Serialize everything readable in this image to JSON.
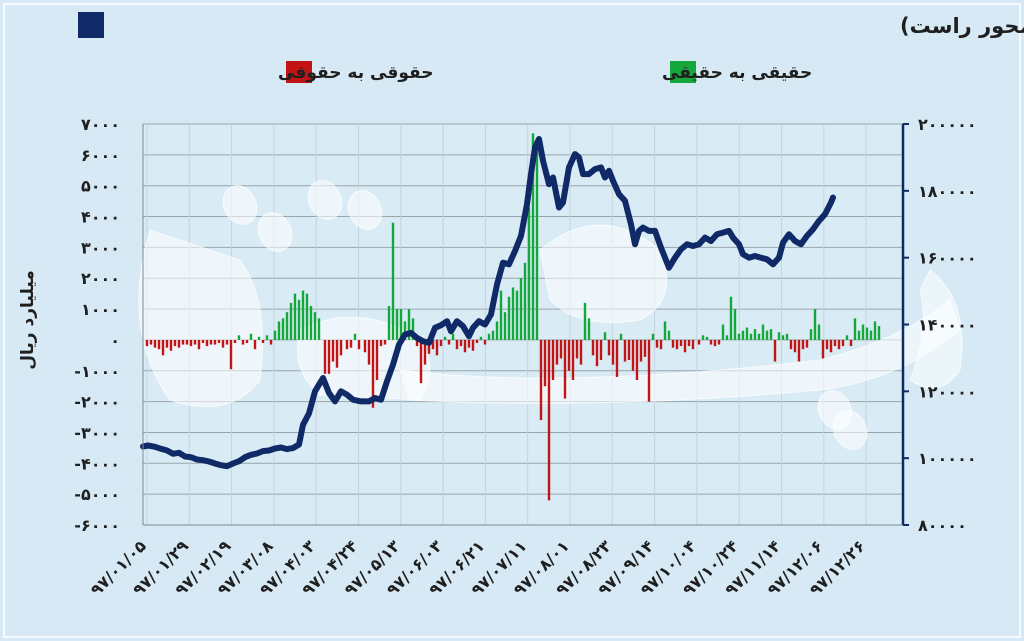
{
  "chart_data": {
    "type": "bar+line",
    "title": "تغییر مالکیت میان سهامداران (محور چپ) و شاخص کل (محور راست)",
    "legend": {
      "line_label": "",
      "green_label": "حقیقی به حقیقی",
      "red_label": "حقوقی به حقوقی",
      "line_color": "#0f2a66",
      "green_color": "#14a83c",
      "red_color": "#c21414"
    },
    "ylabel_left": "میلیارد ریال",
    "ylim_left": [
      -6000,
      7000
    ],
    "ylim_right": [
      80000,
      200000
    ],
    "left_ticks": [
      "۷۰۰۰",
      "۶۰۰۰",
      "۵۰۰۰",
      "۴۰۰۰",
      "۳۰۰۰",
      "۲۰۰۰",
      "۱۰۰۰",
      "۰",
      "-۱۰۰۰",
      "-۲۰۰۰",
      "-۳۰۰۰",
      "-۴۰۰۰",
      "-۵۰۰۰",
      "-۶۰۰۰"
    ],
    "right_ticks": [
      "۲۰۰۰۰۰",
      "۱۸۰۰۰۰",
      "۱۶۰۰۰۰",
      "۱۴۰۰۰۰",
      "۱۲۰۰۰۰",
      "۱۰۰۰۰۰",
      "۸۰۰۰۰"
    ],
    "x_categories": [
      "۹۷/۰۱/۰۵",
      "۹۷/۰۱/۲۹",
      "۹۷/۰۲/۱۹",
      "۹۷/۰۳/۰۸",
      "۹۷/۰۴/۰۳",
      "۹۷/۰۴/۲۴",
      "۹۷/۰۵/۱۳",
      "۹۷/۰۶/۰۳",
      "۹۷/۰۶/۲۱",
      "۹۷/۰۷/۱۱",
      "۹۷/۰۸/۰۱",
      "۹۷/۰۸/۲۳",
      "۹۷/۰۹/۱۴",
      "۹۷/۱۰/۰۴",
      "۹۷/۱۰/۲۴",
      "۹۷/۱۱/۱۴",
      "۹۷/۱۲/۰۶",
      "۹۷/۱۲/۲۶"
    ],
    "index_series": [
      [
        0,
        103500
      ],
      [
        5,
        103800
      ],
      [
        12,
        103400
      ],
      [
        18,
        102800
      ],
      [
        24,
        102300
      ],
      [
        30,
        101300
      ],
      [
        36,
        101600
      ],
      [
        42,
        100500
      ],
      [
        48,
        100300
      ],
      [
        54,
        99600
      ],
      [
        60,
        99400
      ],
      [
        66,
        99000
      ],
      [
        72,
        98400
      ],
      [
        78,
        97900
      ],
      [
        84,
        97600
      ],
      [
        90,
        98400
      ],
      [
        96,
        99100
      ],
      [
        102,
        100300
      ],
      [
        108,
        101000
      ],
      [
        114,
        101400
      ],
      [
        120,
        102100
      ],
      [
        126,
        102300
      ],
      [
        132,
        102900
      ],
      [
        138,
        103200
      ],
      [
        144,
        102700
      ],
      [
        150,
        103000
      ],
      [
        156,
        104100
      ],
      [
        160,
        110000
      ],
      [
        166,
        113400
      ],
      [
        172,
        120000
      ],
      [
        180,
        124000
      ],
      [
        186,
        119500
      ],
      [
        192,
        117000
      ],
      [
        198,
        120000
      ],
      [
        204,
        119000
      ],
      [
        210,
        117500
      ],
      [
        218,
        117000
      ],
      [
        226,
        117000
      ],
      [
        232,
        118000
      ],
      [
        238,
        117500
      ],
      [
        244,
        123000
      ],
      [
        250,
        128000
      ],
      [
        256,
        134000
      ],
      [
        262,
        137000
      ],
      [
        268,
        137500
      ],
      [
        274,
        136000
      ],
      [
        280,
        135000
      ],
      [
        286,
        134500
      ],
      [
        292,
        139000
      ],
      [
        298,
        139800
      ],
      [
        304,
        141000
      ],
      [
        308,
        138000
      ],
      [
        314,
        141000
      ],
      [
        320,
        139500
      ],
      [
        326,
        136500
      ],
      [
        330,
        139000
      ],
      [
        336,
        141000
      ],
      [
        342,
        140000
      ],
      [
        348,
        143000
      ],
      [
        354,
        152000
      ],
      [
        360,
        158500
      ],
      [
        366,
        158000
      ],
      [
        372,
        162000
      ],
      [
        378,
        166500
      ],
      [
        384,
        176000
      ],
      [
        388,
        185000
      ],
      [
        392,
        193000
      ],
      [
        396,
        195500
      ],
      [
        400,
        189000
      ],
      [
        406,
        182000
      ],
      [
        410,
        184000
      ],
      [
        416,
        175000
      ],
      [
        420,
        176500
      ],
      [
        426,
        187000
      ],
      [
        432,
        191000
      ],
      [
        436,
        190000
      ],
      [
        440,
        185000
      ],
      [
        446,
        185000
      ],
      [
        452,
        186500
      ],
      [
        458,
        187000
      ],
      [
        462,
        184000
      ],
      [
        466,
        186000
      ],
      [
        470,
        183000
      ],
      [
        476,
        179000
      ],
      [
        482,
        177000
      ],
      [
        488,
        170000
      ],
      [
        492,
        164000
      ],
      [
        496,
        168000
      ],
      [
        500,
        169000
      ],
      [
        506,
        168000
      ],
      [
        512,
        168000
      ],
      [
        518,
        163000
      ],
      [
        522,
        160000
      ],
      [
        526,
        157000
      ],
      [
        532,
        160000
      ],
      [
        538,
        162500
      ],
      [
        544,
        164000
      ],
      [
        550,
        163500
      ],
      [
        556,
        164000
      ],
      [
        562,
        166000
      ],
      [
        568,
        165000
      ],
      [
        574,
        167000
      ],
      [
        580,
        167500
      ],
      [
        586,
        168000
      ],
      [
        590,
        166000
      ],
      [
        596,
        164000
      ],
      [
        600,
        161000
      ],
      [
        606,
        160000
      ],
      [
        612,
        160500
      ],
      [
        618,
        160000
      ],
      [
        624,
        159500
      ],
      [
        630,
        158000
      ],
      [
        636,
        160000
      ],
      [
        640,
        164500
      ],
      [
        646,
        167000
      ],
      [
        652,
        165000
      ],
      [
        658,
        164000
      ],
      [
        664,
        166500
      ],
      [
        670,
        168500
      ],
      [
        676,
        171000
      ],
      [
        682,
        173000
      ],
      [
        688,
        176500
      ],
      [
        690,
        178000
      ]
    ],
    "bars": [
      {
        "x": 4,
        "v": -200
      },
      {
        "x": 8,
        "v": -150
      },
      {
        "x": 12,
        "v": -250
      },
      {
        "x": 16,
        "v": -300
      },
      {
        "x": 20,
        "v": -500
      },
      {
        "x": 24,
        "v": -250
      },
      {
        "x": 28,
        "v": -350
      },
      {
        "x": 32,
        "v": -200
      },
      {
        "x": 36,
        "v": -250
      },
      {
        "x": 40,
        "v": -150
      },
      {
        "x": 44,
        "v": -150
      },
      {
        "x": 48,
        "v": -200
      },
      {
        "x": 52,
        "v": -150
      },
      {
        "x": 56,
        "v": -300
      },
      {
        "x": 60,
        "v": -100
      },
      {
        "x": 64,
        "v": -200
      },
      {
        "x": 68,
        "v": -150
      },
      {
        "x": 72,
        "v": -150
      },
      {
        "x": 76,
        "v": -100
      },
      {
        "x": 80,
        "v": -250
      },
      {
        "x": 84,
        "v": -150
      },
      {
        "x": 88,
        "v": -950
      },
      {
        "x": 92,
        "v": -100
      },
      {
        "x": 96,
        "v": 150
      },
      {
        "x": 100,
        "v": -150
      },
      {
        "x": 104,
        "v": -100
      },
      {
        "x": 108,
        "v": 200
      },
      {
        "x": 112,
        "v": -300
      },
      {
        "x": 116,
        "v": 100
      },
      {
        "x": 120,
        "v": -100
      },
      {
        "x": 124,
        "v": 150
      },
      {
        "x": 128,
        "v": -150
      },
      {
        "x": 132,
        "v": 300
      },
      {
        "x": 136,
        "v": 600
      },
      {
        "x": 140,
        "v": 700
      },
      {
        "x": 144,
        "v": 900
      },
      {
        "x": 148,
        "v": 1200
      },
      {
        "x": 152,
        "v": 1500
      },
      {
        "x": 156,
        "v": 1300
      },
      {
        "x": 160,
        "v": 1600
      },
      {
        "x": 164,
        "v": 1500
      },
      {
        "x": 168,
        "v": 1100
      },
      {
        "x": 172,
        "v": 900
      },
      {
        "x": 176,
        "v": 700
      },
      {
        "x": 182,
        "v": -1100
      },
      {
        "x": 186,
        "v": -1100
      },
      {
        "x": 190,
        "v": -700
      },
      {
        "x": 194,
        "v": -900
      },
      {
        "x": 198,
        "v": -500
      },
      {
        "x": 204,
        "v": -300
      },
      {
        "x": 208,
        "v": -250
      },
      {
        "x": 212,
        "v": 200
      },
      {
        "x": 216,
        "v": -300
      },
      {
        "x": 222,
        "v": -400
      },
      {
        "x": 226,
        "v": -800
      },
      {
        "x": 230,
        "v": -2200
      },
      {
        "x": 234,
        "v": -1300
      },
      {
        "x": 238,
        "v": -200
      },
      {
        "x": 242,
        "v": -150
      },
      {
        "x": 246,
        "v": 1100
      },
      {
        "x": 250,
        "v": 3800
      },
      {
        "x": 254,
        "v": 1000
      },
      {
        "x": 258,
        "v": 1000
      },
      {
        "x": 262,
        "v": 600
      },
      {
        "x": 266,
        "v": 1000
      },
      {
        "x": 270,
        "v": 700
      },
      {
        "x": 274,
        "v": -200
      },
      {
        "x": 278,
        "v": -1400
      },
      {
        "x": 282,
        "v": -800
      },
      {
        "x": 286,
        "v": -450
      },
      {
        "x": 290,
        "v": -300
      },
      {
        "x": 294,
        "v": -500
      },
      {
        "x": 298,
        "v": -200
      },
      {
        "x": 302,
        "v": 100
      },
      {
        "x": 306,
        "v": -150
      },
      {
        "x": 310,
        "v": 200
      },
      {
        "x": 314,
        "v": -300
      },
      {
        "x": 318,
        "v": -200
      },
      {
        "x": 322,
        "v": -400
      },
      {
        "x": 326,
        "v": -250
      },
      {
        "x": 330,
        "v": -350
      },
      {
        "x": 334,
        "v": -100
      },
      {
        "x": 338,
        "v": 100
      },
      {
        "x": 342,
        "v": -150
      },
      {
        "x": 346,
        "v": 200
      },
      {
        "x": 350,
        "v": 300
      },
      {
        "x": 354,
        "v": 600
      },
      {
        "x": 358,
        "v": 1600
      },
      {
        "x": 362,
        "v": 900
      },
      {
        "x": 366,
        "v": 1400
      },
      {
        "x": 370,
        "v": 1700
      },
      {
        "x": 374,
        "v": 1600
      },
      {
        "x": 378,
        "v": 2000
      },
      {
        "x": 382,
        "v": 2500
      },
      {
        "x": 386,
        "v": 4300
      },
      {
        "x": 390,
        "v": 6700
      },
      {
        "x": 394,
        "v": 6500
      },
      {
        "x": 398,
        "v": -2600
      },
      {
        "x": 402,
        "v": -1500
      },
      {
        "x": 406,
        "v": -5200
      },
      {
        "x": 410,
        "v": -1300
      },
      {
        "x": 414,
        "v": -800
      },
      {
        "x": 418,
        "v": -600
      },
      {
        "x": 422,
        "v": -1900
      },
      {
        "x": 426,
        "v": -1000
      },
      {
        "x": 430,
        "v": -1300
      },
      {
        "x": 434,
        "v": -600
      },
      {
        "x": 438,
        "v": -800
      },
      {
        "x": 442,
        "v": 1200
      },
      {
        "x": 446,
        "v": 700
      },
      {
        "x": 450,
        "v": -500
      },
      {
        "x": 454,
        "v": -850
      },
      {
        "x": 458,
        "v": -650
      },
      {
        "x": 462,
        "v": 250
      },
      {
        "x": 466,
        "v": -500
      },
      {
        "x": 470,
        "v": -800
      },
      {
        "x": 474,
        "v": -1200
      },
      {
        "x": 478,
        "v": 200
      },
      {
        "x": 482,
        "v": -700
      },
      {
        "x": 486,
        "v": -650
      },
      {
        "x": 490,
        "v": -1000
      },
      {
        "x": 494,
        "v": -1300
      },
      {
        "x": 498,
        "v": -700
      },
      {
        "x": 502,
        "v": -550
      },
      {
        "x": 506,
        "v": -2000
      },
      {
        "x": 510,
        "v": 200
      },
      {
        "x": 514,
        "v": -250
      },
      {
        "x": 518,
        "v": -300
      },
      {
        "x": 522,
        "v": 600
      },
      {
        "x": 526,
        "v": 300
      },
      {
        "x": 530,
        "v": -250
      },
      {
        "x": 534,
        "v": -300
      },
      {
        "x": 538,
        "v": -200
      },
      {
        "x": 542,
        "v": -400
      },
      {
        "x": 546,
        "v": -200
      },
      {
        "x": 550,
        "v": -300
      },
      {
        "x": 556,
        "v": -150
      },
      {
        "x": 560,
        "v": 150
      },
      {
        "x": 564,
        "v": 100
      },
      {
        "x": 568,
        "v": -150
      },
      {
        "x": 572,
        "v": -200
      },
      {
        "x": 576,
        "v": -150
      },
      {
        "x": 580,
        "v": 500
      },
      {
        "x": 584,
        "v": 150
      },
      {
        "x": 588,
        "v": 1400
      },
      {
        "x": 592,
        "v": 1000
      },
      {
        "x": 596,
        "v": 200
      },
      {
        "x": 600,
        "v": 300
      },
      {
        "x": 604,
        "v": 400
      },
      {
        "x": 608,
        "v": 200
      },
      {
        "x": 612,
        "v": 350
      },
      {
        "x": 616,
        "v": 200
      },
      {
        "x": 620,
        "v": 500
      },
      {
        "x": 624,
        "v": 300
      },
      {
        "x": 628,
        "v": 350
      },
      {
        "x": 632,
        "v": -700
      },
      {
        "x": 636,
        "v": 250
      },
      {
        "x": 640,
        "v": 150
      },
      {
        "x": 644,
        "v": 200
      },
      {
        "x": 648,
        "v": -300
      },
      {
        "x": 652,
        "v": -400
      },
      {
        "x": 656,
        "v": -700
      },
      {
        "x": 660,
        "v": -300
      },
      {
        "x": 664,
        "v": -250
      },
      {
        "x": 668,
        "v": 350
      },
      {
        "x": 672,
        "v": 1000
      },
      {
        "x": 676,
        "v": 500
      },
      {
        "x": 680,
        "v": -600
      },
      {
        "x": 684,
        "v": -300
      },
      {
        "x": 688,
        "v": -400
      },
      {
        "x": 692,
        "v": -200
      },
      {
        "x": 696,
        "v": -300
      },
      {
        "x": 700,
        "v": -200
      },
      {
        "x": 704,
        "v": 150
      },
      {
        "x": 708,
        "v": -200
      },
      {
        "x": 712,
        "v": 700
      },
      {
        "x": 716,
        "v": 300
      },
      {
        "x": 720,
        "v": 500
      },
      {
        "x": 724,
        "v": 400
      },
      {
        "x": 728,
        "v": 300
      },
      {
        "x": 732,
        "v": 600
      },
      {
        "x": 736,
        "v": 450
      }
    ]
  }
}
